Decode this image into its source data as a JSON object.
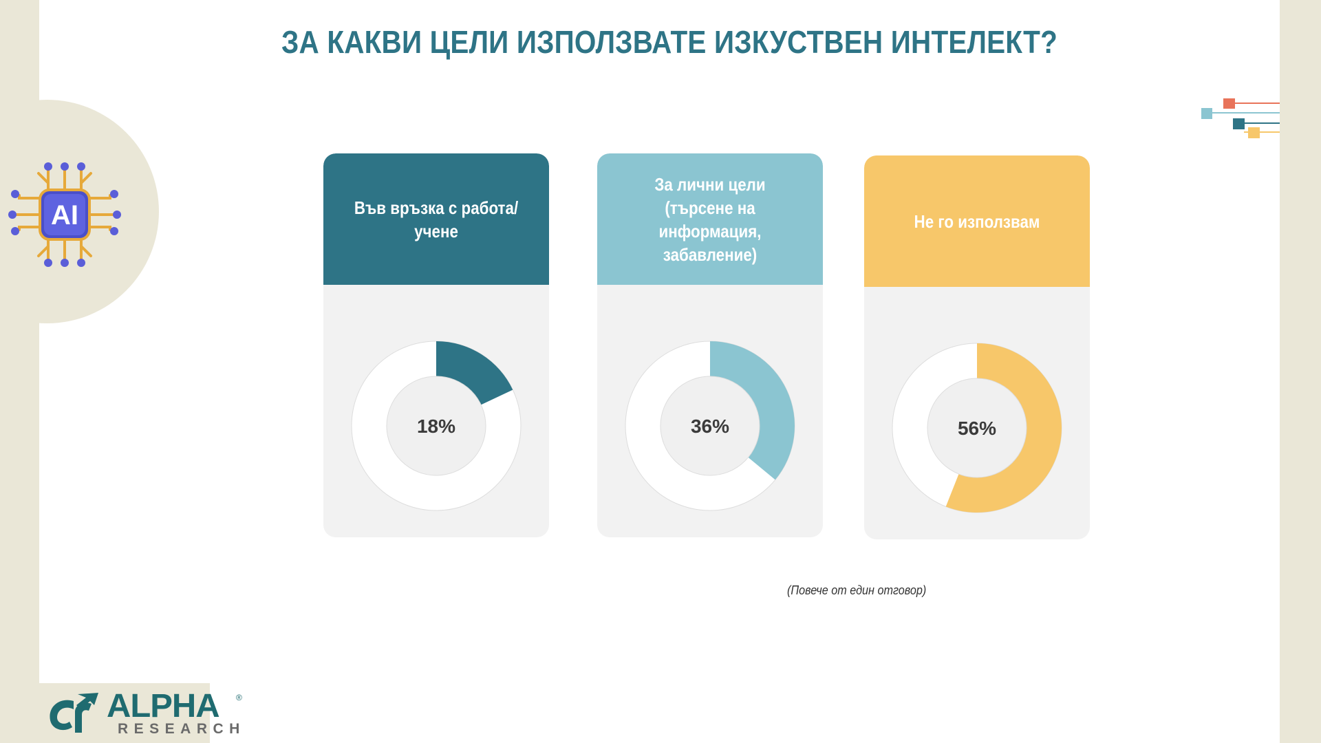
{
  "slide": {
    "title": "ЗА КАКВИ ЦЕЛИ ИЗПОЛЗВАТЕ ИЗКУСТВЕН ИНТЕЛЕКТ?",
    "footnote": "(Повече от един отговор)",
    "icon_label": "AI"
  },
  "logo": {
    "name": "ALPHA",
    "sub": "RESEARCH",
    "registered": "®"
  },
  "colors": {
    "title": "#2e7486",
    "card_bg": "#f2f2f2",
    "donut_track": "#ffffff",
    "donut_inner": "#f0f0f0"
  },
  "chart_data": {
    "type": "donut",
    "title": "",
    "unit": "%",
    "items": [
      {
        "label": "Във връзка с работа/\nучене",
        "value": 18,
        "value_label": "18%",
        "color": "#2e7486"
      },
      {
        "label": "За лични цели\n(търсене на\nинформация, забавление)",
        "value": 36,
        "value_label": "36%",
        "color": "#8bc5d1"
      },
      {
        "label": "Не го използвам",
        "value": 56,
        "value_label": "56%",
        "color": "#f7c76a"
      }
    ]
  }
}
